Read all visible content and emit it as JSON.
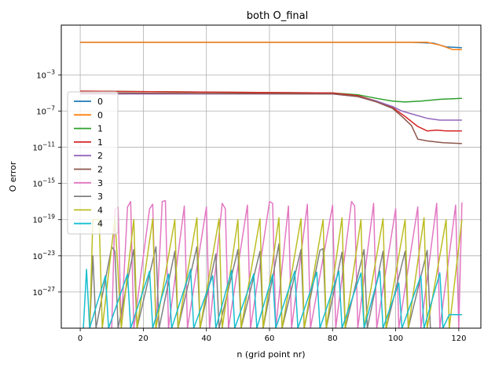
{
  "chart_data": {
    "type": "line",
    "title": "both O_final",
    "xlabel": "n (grid point nr)",
    "ylabel": "O error",
    "xlim": [
      -6,
      127
    ],
    "ylim_log10": [
      -31,
      2.5
    ],
    "yscale": "log",
    "grid": true,
    "legend_position": "center-left",
    "x_ticks": [
      0,
      20,
      40,
      60,
      80,
      100,
      120
    ],
    "y_ticks": [
      {
        "exp": -3,
        "label": "10",
        "sup": "−3"
      },
      {
        "exp": -7,
        "label": "10",
        "sup": "−7"
      },
      {
        "exp": -11,
        "label": "10",
        "sup": "−11"
      },
      {
        "exp": -15,
        "label": "10",
        "sup": "−15"
      },
      {
        "exp": -19,
        "label": "10",
        "sup": "−19"
      },
      {
        "exp": -23,
        "label": "10",
        "sup": "−23"
      },
      {
        "exp": -27,
        "label": "10",
        "sup": "−27"
      }
    ],
    "series": [
      {
        "name": "0",
        "color": "#1f77b4",
        "log10_points": [
          [
            0,
            0.6
          ],
          [
            105,
            0.6
          ],
          [
            112,
            0.5
          ],
          [
            116,
            0.1
          ],
          [
            121,
            0.0
          ]
        ]
      },
      {
        "name": "0",
        "color": "#ff7f0e",
        "log10_points": [
          [
            0,
            0.6
          ],
          [
            110,
            0.6
          ],
          [
            114,
            0.3
          ],
          [
            118,
            -0.2
          ],
          [
            121,
            -0.2
          ]
        ]
      },
      {
        "name": "1",
        "color": "#2ca02c",
        "log10_points": [
          [
            0,
            -4.8
          ],
          [
            80,
            -5.0
          ],
          [
            88,
            -5.2
          ],
          [
            94,
            -5.6
          ],
          [
            99,
            -5.9
          ],
          [
            103,
            -6.0
          ],
          [
            108,
            -5.9
          ],
          [
            114,
            -5.7
          ],
          [
            121,
            -5.6
          ]
        ]
      },
      {
        "name": "1",
        "color": "#d62728",
        "log10_points": [
          [
            0,
            -4.8
          ],
          [
            80,
            -5.0
          ],
          [
            88,
            -5.3
          ],
          [
            94,
            -5.9
          ],
          [
            99,
            -6.6
          ],
          [
            103,
            -7.6
          ],
          [
            107,
            -8.7
          ],
          [
            110,
            -9.2
          ],
          [
            113,
            -9.1
          ],
          [
            116,
            -9.2
          ],
          [
            121,
            -9.2
          ]
        ]
      },
      {
        "name": "2",
        "color": "#9467bd",
        "log10_points": [
          [
            0,
            -5.1
          ],
          [
            80,
            -5.1
          ],
          [
            88,
            -5.4
          ],
          [
            94,
            -5.9
          ],
          [
            99,
            -6.5
          ],
          [
            102,
            -7.0
          ],
          [
            106,
            -7.4
          ],
          [
            110,
            -7.8
          ],
          [
            114,
            -8.0
          ],
          [
            121,
            -8.0
          ]
        ]
      },
      {
        "name": "2",
        "color": "#8c564b",
        "log10_points": [
          [
            0,
            -5.0
          ],
          [
            80,
            -5.1
          ],
          [
            88,
            -5.4
          ],
          [
            94,
            -6.0
          ],
          [
            99,
            -6.7
          ],
          [
            102,
            -7.6
          ],
          [
            105,
            -8.6
          ],
          [
            107,
            -10.1
          ],
          [
            110,
            -10.3
          ],
          [
            115,
            -10.5
          ],
          [
            121,
            -10.6
          ]
        ]
      },
      {
        "name": "3",
        "color": "#e377c2",
        "log10_points": [
          [
            10,
            -31
          ],
          [
            11,
            -17.9
          ],
          [
            12,
            -17.6
          ],
          [
            13,
            -31
          ],
          [
            15,
            -17.6
          ],
          [
            16,
            -17.0
          ],
          [
            17,
            -31
          ],
          [
            22,
            -17.8
          ],
          [
            23,
            -17.3
          ],
          [
            24,
            -31
          ],
          [
            26,
            -17.0
          ],
          [
            27,
            -16.9
          ],
          [
            28,
            -31
          ],
          [
            33,
            -17.5
          ],
          [
            34,
            -31
          ],
          [
            40,
            -17.6
          ],
          [
            41,
            -31
          ],
          [
            45,
            -17.2
          ],
          [
            46,
            -17.8
          ],
          [
            47,
            -31
          ],
          [
            53,
            -17.4
          ],
          [
            54,
            -31
          ],
          [
            60,
            -17.0
          ],
          [
            61,
            -17.2
          ],
          [
            62,
            -31
          ],
          [
            66,
            -17.5
          ],
          [
            67,
            -31
          ],
          [
            72,
            -17.3
          ],
          [
            73,
            -31
          ],
          [
            80,
            -17.4
          ],
          [
            81,
            -31
          ],
          [
            86,
            -17.0
          ],
          [
            87,
            -17.5
          ],
          [
            88,
            -31
          ],
          [
            93,
            -17.2
          ],
          [
            94,
            -31
          ],
          [
            100,
            -17.8
          ],
          [
            101,
            -31
          ],
          [
            107,
            -17.6
          ],
          [
            108,
            -31
          ],
          [
            113,
            -17.2
          ],
          [
            114,
            -31
          ],
          [
            119,
            -17.4
          ],
          [
            120,
            -31
          ],
          [
            121,
            -17.1
          ]
        ]
      },
      {
        "name": "3",
        "color": "#7f7f7f",
        "log10_points": [
          [
            3,
            -31
          ],
          [
            4,
            -23.0
          ],
          [
            5,
            -31
          ],
          [
            10,
            -22.0
          ],
          [
            11,
            -22.5
          ],
          [
            12,
            -31
          ],
          [
            17,
            -22.3
          ],
          [
            18,
            -31
          ],
          [
            24,
            -22.0
          ],
          [
            25,
            -31
          ],
          [
            30,
            -22.5
          ],
          [
            31,
            -31
          ],
          [
            37,
            -22.0
          ],
          [
            38,
            -31
          ],
          [
            43,
            -22.8
          ],
          [
            44,
            -31
          ],
          [
            50,
            -22.3
          ],
          [
            51,
            -31
          ],
          [
            57,
            -22.5
          ],
          [
            58,
            -31
          ],
          [
            63,
            -21.7
          ],
          [
            64,
            -31
          ],
          [
            70,
            -22.3
          ],
          [
            71,
            -31
          ],
          [
            76,
            -22.4
          ],
          [
            77,
            -22.2
          ],
          [
            78,
            -31
          ],
          [
            83,
            -22.6
          ],
          [
            84,
            -31
          ],
          [
            90,
            -22.3
          ],
          [
            91,
            -31
          ],
          [
            96,
            -22.5
          ],
          [
            97,
            -31
          ],
          [
            103,
            -22.5
          ],
          [
            104,
            -31
          ],
          [
            110,
            -22.4
          ],
          [
            111,
            -31
          ]
        ]
      },
      {
        "name": "4",
        "color": "#bcbd22",
        "log10_points": [
          [
            3,
            -31
          ],
          [
            4,
            -19.0
          ],
          [
            6,
            -19.0
          ],
          [
            7,
            -31
          ],
          [
            11,
            -18.8
          ],
          [
            13,
            -31
          ],
          [
            17,
            -19.0
          ],
          [
            18,
            -31
          ],
          [
            23,
            -18.9
          ],
          [
            24,
            -31
          ],
          [
            30,
            -19.0
          ],
          [
            31,
            -31
          ],
          [
            37,
            -18.8
          ],
          [
            38,
            -31
          ],
          [
            44,
            -18.9
          ],
          [
            45,
            -31
          ],
          [
            50,
            -19.0
          ],
          [
            51,
            -31
          ],
          [
            57,
            -18.9
          ],
          [
            58,
            -31
          ],
          [
            63,
            -18.8
          ],
          [
            64,
            -31
          ],
          [
            70,
            -18.9
          ],
          [
            71,
            -31
          ],
          [
            77,
            -19.0
          ],
          [
            78,
            -31
          ],
          [
            83,
            -18.8
          ],
          [
            84,
            -31
          ],
          [
            89,
            -19.0
          ],
          [
            90,
            -31
          ],
          [
            96,
            -18.9
          ],
          [
            97,
            -31
          ],
          [
            103,
            -19.0
          ],
          [
            104,
            -31
          ],
          [
            109,
            -18.8
          ],
          [
            110,
            -31
          ],
          [
            116,
            -19.0
          ],
          [
            117,
            -31
          ],
          [
            121,
            -19.0
          ]
        ]
      },
      {
        "name": "4",
        "color": "#17becf",
        "log10_points": [
          [
            1,
            -31
          ],
          [
            2,
            -24.5
          ],
          [
            3,
            -31
          ],
          [
            8,
            -25.2
          ],
          [
            9,
            -31
          ],
          [
            15,
            -25.0
          ],
          [
            16,
            -31
          ],
          [
            22,
            -24.7
          ],
          [
            23,
            -31
          ],
          [
            28,
            -25.0
          ],
          [
            29,
            -31
          ],
          [
            35,
            -24.5
          ],
          [
            36,
            -31
          ],
          [
            42,
            -25.2
          ],
          [
            43,
            -31
          ],
          [
            48,
            -24.6
          ],
          [
            49,
            -31
          ],
          [
            55,
            -25.0
          ],
          [
            56,
            -31
          ],
          [
            61,
            -25.1
          ],
          [
            62,
            -31
          ],
          [
            68,
            -24.7
          ],
          [
            69,
            -31
          ],
          [
            75,
            -24.8
          ],
          [
            76,
            -31
          ],
          [
            82,
            -24.7
          ],
          [
            83,
            -31
          ],
          [
            89,
            -24.9
          ],
          [
            90,
            -31
          ],
          [
            95,
            -24.7
          ],
          [
            96,
            -31
          ],
          [
            101,
            -26.0
          ],
          [
            102,
            -31
          ],
          [
            108,
            -25.2
          ],
          [
            109,
            -31
          ],
          [
            114,
            -24.9
          ],
          [
            115,
            -31
          ],
          [
            117,
            -29.5
          ],
          [
            121,
            -29.5
          ]
        ]
      }
    ]
  }
}
